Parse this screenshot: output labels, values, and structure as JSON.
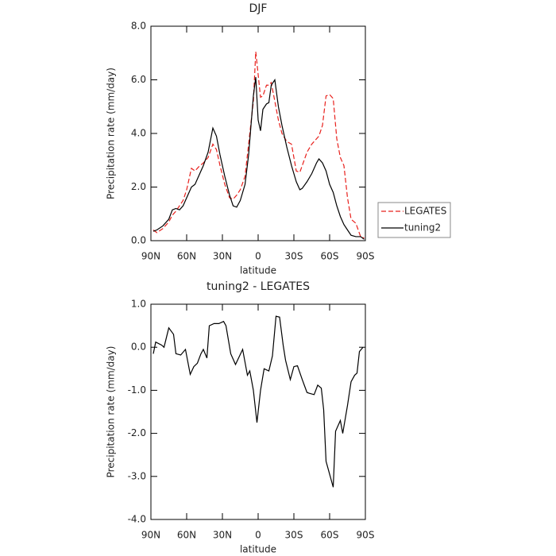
{
  "chart_data": [
    {
      "type": "line",
      "title": "DJF",
      "xlabel": "latitude",
      "ylabel": "Precipitation rate (mm/day)",
      "x": [
        88,
        85,
        80,
        75,
        72,
        69,
        66,
        63,
        60,
        56,
        53,
        50,
        46,
        42,
        38,
        35,
        32,
        28,
        24,
        21,
        18,
        15,
        11,
        8,
        4,
        2,
        0,
        -2,
        -4,
        -7,
        -9,
        -11,
        -14,
        -17,
        -20,
        -24,
        -28,
        -32,
        -35,
        -37,
        -41,
        -45,
        -49,
        -51,
        -54,
        -57,
        -60,
        -63,
        -66,
        -69,
        -72,
        -75,
        -78,
        -82,
        -86,
        -89
      ],
      "series": [
        {
          "name": "LEGATES",
          "color": "#e8201c",
          "line_style": "dashed",
          "values": [
            0.4,
            0.3,
            0.45,
            0.7,
            0.95,
            1.1,
            1.3,
            1.5,
            1.9,
            2.7,
            2.6,
            2.75,
            2.9,
            3.1,
            3.6,
            3.4,
            2.8,
            2.1,
            1.6,
            1.55,
            1.7,
            1.9,
            2.4,
            3.6,
            5.2,
            7.05,
            6.2,
            5.35,
            5.4,
            5.8,
            5.8,
            5.9,
            5.2,
            4.5,
            4.0,
            3.7,
            3.6,
            2.6,
            2.55,
            2.8,
            3.3,
            3.6,
            3.8,
            3.9,
            4.3,
            5.4,
            5.45,
            5.3,
            3.8,
            3.1,
            2.8,
            1.6,
            0.8,
            0.65,
            0.15,
            0.1
          ]
        },
        {
          "name": "tuning2",
          "color": "#000000",
          "line_style": "solid",
          "values": [
            0.35,
            0.4,
            0.55,
            0.8,
            1.15,
            1.2,
            1.15,
            1.3,
            1.6,
            2.0,
            2.1,
            2.4,
            2.8,
            3.3,
            4.2,
            3.9,
            3.2,
            2.4,
            1.7,
            1.3,
            1.25,
            1.5,
            2.1,
            3.2,
            5.4,
            6.1,
            4.5,
            4.1,
            4.9,
            5.1,
            5.15,
            5.8,
            6.0,
            5.0,
            4.3,
            3.5,
            2.8,
            2.2,
            1.9,
            1.95,
            2.2,
            2.5,
            2.9,
            3.05,
            2.9,
            2.6,
            2.1,
            1.8,
            1.3,
            0.9,
            0.6,
            0.4,
            0.2,
            0.15,
            0.15,
            0.05
          ]
        }
      ],
      "xlim": [
        90,
        -90
      ],
      "xticks": [
        {
          "value": 90,
          "label": "90N"
        },
        {
          "value": 60,
          "label": "60N"
        },
        {
          "value": 30,
          "label": "30N"
        },
        0,
        {
          "value": -30,
          "label": "30S"
        },
        {
          "value": -60,
          "label": "60S"
        },
        {
          "value": -90,
          "label": "90S"
        }
      ],
      "ylim": [
        0,
        8
      ],
      "yticks": [
        {
          "value": 0,
          "label": "0.0"
        },
        {
          "value": 2,
          "label": "2.0"
        },
        {
          "value": 4,
          "label": "4.0"
        },
        {
          "value": 6,
          "label": "6.0"
        },
        {
          "value": 8,
          "label": "8.0"
        }
      ],
      "legend": "right"
    },
    {
      "type": "line",
      "title": "tuning2 - LEGATES",
      "xlabel": "latitude",
      "ylabel": "Precipitation rate (mm/day)",
      "x": [
        88,
        86,
        81,
        79,
        75,
        71,
        69,
        65,
        61,
        57,
        54,
        51,
        48,
        46,
        43,
        41,
        37,
        33,
        29,
        27,
        23,
        19,
        13,
        9,
        7,
        4,
        1,
        -2,
        -5,
        -9,
        -12,
        -15,
        -18,
        -21,
        -23,
        -27,
        -30,
        -33,
        -37,
        -41,
        -43,
        -47,
        -50,
        -53,
        -55,
        -57,
        -60,
        -63,
        -65,
        -69,
        -71,
        -75,
        -78,
        -81,
        -83,
        -85,
        -88
      ],
      "color": "#000000",
      "values": [
        -0.15,
        0.12,
        0.05,
        0.0,
        0.45,
        0.3,
        -0.15,
        -0.18,
        -0.05,
        -0.63,
        -0.45,
        -0.37,
        -0.15,
        -0.05,
        -0.25,
        0.5,
        0.55,
        0.55,
        0.6,
        0.5,
        -0.15,
        -0.4,
        -0.05,
        -0.65,
        -0.55,
        -1.0,
        -1.75,
        -1.0,
        -0.5,
        -0.55,
        -0.2,
        0.72,
        0.7,
        0.05,
        -0.3,
        -0.75,
        -0.45,
        -0.43,
        -0.75,
        -1.05,
        -1.07,
        -1.1,
        -0.88,
        -0.95,
        -1.45,
        -2.65,
        -2.95,
        -3.25,
        -1.95,
        -1.7,
        -2.0,
        -1.35,
        -0.8,
        -0.65,
        -0.6,
        -0.1,
        0.0
      ],
      "xlim": [
        90,
        -90
      ],
      "xticks": [
        {
          "value": 90,
          "label": "90N"
        },
        {
          "value": 60,
          "label": "60N"
        },
        {
          "value": 30,
          "label": "30N"
        },
        0,
        {
          "value": -30,
          "label": "30S"
        },
        {
          "value": -60,
          "label": "60S"
        },
        {
          "value": -90,
          "label": "90S"
        }
      ],
      "ylim": [
        -4,
        1
      ],
      "yticks": [
        {
          "value": -4,
          "label": "-4.0"
        },
        {
          "value": -3,
          "label": "-3.0"
        },
        {
          "value": -2,
          "label": "-2.0"
        },
        {
          "value": -1,
          "label": "-1.0"
        },
        {
          "value": 0,
          "label": "0.0"
        },
        {
          "value": 1,
          "label": "1.0"
        }
      ]
    }
  ]
}
